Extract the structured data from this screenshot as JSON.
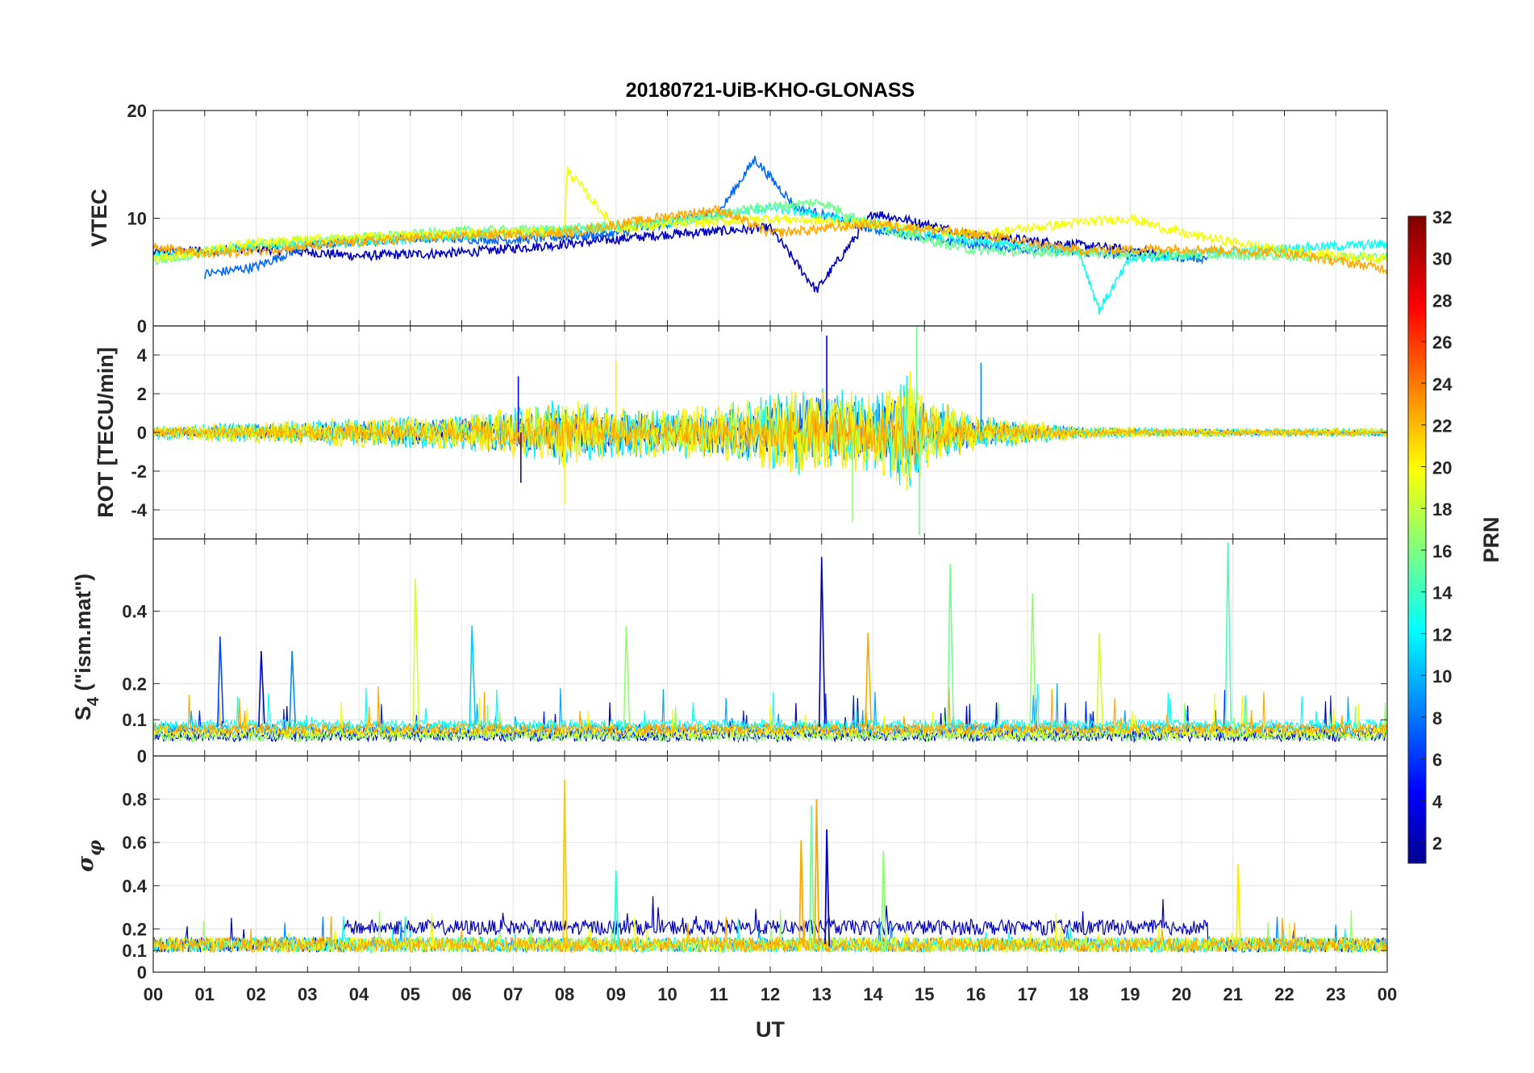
{
  "title": "20180721-UiB-KHO-GLONASS",
  "xlabel": "UT",
  "x_ticks": [
    "00",
    "01",
    "02",
    "03",
    "04",
    "05",
    "06",
    "07",
    "08",
    "09",
    "10",
    "11",
    "12",
    "13",
    "14",
    "15",
    "16",
    "17",
    "18",
    "19",
    "20",
    "21",
    "22",
    "23",
    "00"
  ],
  "colorbar": {
    "label": "PRN",
    "range": [
      1,
      32
    ],
    "ticks": [
      "2",
      "4",
      "6",
      "8",
      "10",
      "12",
      "14",
      "16",
      "18",
      "20",
      "22",
      "24",
      "26",
      "28",
      "30",
      "32"
    ],
    "colormap": "jet"
  },
  "chart_data": [
    {
      "type": "line",
      "panel": "VTEC",
      "ylabel": "VTEC",
      "ylim": [
        0,
        20
      ],
      "yticks": [
        "0",
        "10",
        "20"
      ],
      "xlim": [
        0,
        24
      ],
      "grid": true,
      "description_of_series": "Colored by PRN; typical VTEC 6-9 TECU, peaks near 15.5 at 11.8 UT",
      "series": [
        {
          "prn": 3,
          "x": [
            0,
            2,
            4,
            6,
            8,
            10,
            12,
            12.9,
            14,
            16,
            18,
            19.5
          ],
          "y": [
            6.8,
            7.2,
            6.5,
            6.8,
            7.6,
            8.5,
            9.1,
            3.3,
            10.5,
            8.4,
            7.5,
            6.8
          ]
        },
        {
          "prn": 8,
          "x": [
            1,
            2,
            3,
            5,
            7,
            9,
            11,
            11.7,
            12.5,
            14,
            16,
            18,
            20.5
          ],
          "y": [
            4.8,
            5.5,
            7.5,
            8.2,
            8.0,
            8.6,
            10.5,
            15.5,
            11.0,
            9.0,
            7.5,
            6.8,
            6.3
          ]
        },
        {
          "prn": 13,
          "x": [
            0,
            2,
            4,
            6,
            8,
            10,
            12,
            14,
            16,
            18,
            18.4,
            19,
            20,
            22,
            24
          ],
          "y": [
            6.5,
            7.4,
            7.8,
            8.4,
            8.8,
            9.5,
            11.0,
            9.5,
            7.8,
            7.0,
            1.5,
            6.2,
            6.6,
            7.2,
            7.6
          ]
        },
        {
          "prn": 16,
          "x": [
            0,
            2,
            4,
            6,
            8,
            10,
            11.8,
            13,
            14,
            15,
            16,
            18,
            20,
            22,
            24
          ],
          "y": [
            6.0,
            7.6,
            8.2,
            8.8,
            9.0,
            9.6,
            11.0,
            11.5,
            9.3,
            8.0,
            7.0,
            6.8,
            6.6,
            6.5,
            6.4
          ]
        },
        {
          "prn": 20,
          "x": [
            0,
            2,
            4,
            6,
            8,
            8.05,
            9,
            10,
            12,
            14,
            16,
            18,
            19,
            20,
            22,
            24
          ],
          "y": [
            6.2,
            7.8,
            8.2,
            8.6,
            8.8,
            14.5,
            9.0,
            9.4,
            10.0,
            9.5,
            8.5,
            9.6,
            10.0,
            8.6,
            7.0,
            6.2
          ]
        },
        {
          "prn": 23,
          "x": [
            0,
            1,
            2,
            4,
            6,
            8,
            10,
            10.5,
            11,
            12,
            13,
            14,
            16,
            18,
            20,
            22,
            24
          ],
          "y": [
            7.5,
            6.6,
            7.0,
            7.8,
            8.4,
            8.6,
            10.2,
            10.5,
            10.8,
            8.6,
            9.0,
            9.5,
            8.5,
            7.0,
            7.2,
            6.8,
            5.3
          ]
        }
      ]
    },
    {
      "type": "line",
      "panel": "ROT",
      "ylabel": "ROT [TECU/min]",
      "ylim": [
        -5.5,
        5.5
      ],
      "yticks": [
        "-4",
        "-2",
        "0",
        "2",
        "4"
      ],
      "xlim": [
        0,
        24
      ],
      "grid": true,
      "description_of_series": "Noisy around 0; amplitude increases between 07 and 16 UT with spikes to about ±5",
      "envelope": {
        "x": [
          0,
          2,
          4,
          6,
          7,
          8,
          9,
          10,
          11,
          12,
          13,
          14,
          14.8,
          15,
          16,
          17,
          18,
          20,
          22,
          24
        ],
        "amplitude": [
          0.3,
          0.5,
          0.7,
          0.8,
          1.2,
          1.6,
          1.2,
          1.2,
          1.3,
          1.8,
          2.2,
          1.8,
          3.0,
          1.8,
          0.8,
          0.6,
          0.3,
          0.2,
          0.2,
          0.2
        ]
      },
      "spikes": [
        {
          "prn": 5,
          "x": 7.1,
          "y": 2.9
        },
        {
          "prn": 5,
          "x": 7.15,
          "y": -2.6
        },
        {
          "prn": 20,
          "x": 8.0,
          "y": -3.7
        },
        {
          "prn": 21,
          "x": 9.0,
          "y": 3.7
        },
        {
          "prn": 3,
          "x": 13.1,
          "y": 5.0
        },
        {
          "prn": 17,
          "x": 13.6,
          "y": -4.6
        },
        {
          "prn": 16,
          "x": 14.85,
          "y": 5.5
        },
        {
          "prn": 16,
          "x": 14.9,
          "y": -5.3
        },
        {
          "prn": 9,
          "x": 16.1,
          "y": 3.6
        }
      ]
    },
    {
      "type": "line",
      "panel": "S4",
      "ylabel": "S4 (\"ism.mat\")",
      "ylim": [
        0,
        0.6
      ],
      "yticks": [
        "0",
        "0.1",
        "0.2",
        "0.4"
      ],
      "xlim": [
        0,
        24
      ],
      "grid": true,
      "description_of_series": "Baseline 0.03-0.1 with bursts; spikes at 05.1 (0.49), 13.0 (0.55), 15.5 (0.53), 17.1 (0.45), 20.9 (0.59)",
      "spikes": [
        {
          "prn": 7,
          "x": 1.3,
          "y": 0.33
        },
        {
          "prn": 4,
          "x": 2.1,
          "y": 0.29
        },
        {
          "prn": 9,
          "x": 2.7,
          "y": 0.29
        },
        {
          "prn": 19,
          "x": 5.1,
          "y": 0.49
        },
        {
          "prn": 11,
          "x": 6.2,
          "y": 0.36
        },
        {
          "prn": 17,
          "x": 9.2,
          "y": 0.36
        },
        {
          "prn": 3,
          "x": 13.0,
          "y": 0.55
        },
        {
          "prn": 23,
          "x": 13.9,
          "y": 0.34
        },
        {
          "prn": 16,
          "x": 15.5,
          "y": 0.53
        },
        {
          "prn": 17,
          "x": 17.1,
          "y": 0.45
        },
        {
          "prn": 19,
          "x": 18.4,
          "y": 0.34
        },
        {
          "prn": 15,
          "x": 20.9,
          "y": 0.59
        }
      ]
    },
    {
      "type": "line",
      "panel": "sigma_phi",
      "ylabel": "σφ",
      "ylim": [
        0,
        1
      ],
      "yticks": [
        "0",
        "0.1",
        "0.2",
        "0.4",
        "0.6",
        "0.8"
      ],
      "xlim": [
        0,
        24
      ],
      "grid": true,
      "description_of_series": "Baseline 0.1-0.15; PRN 3-4 elevated 0.2-0.3 in 04-20 UT; spikes at 08.0 (0.89), 12.9 (0.80), 13.1 (0.66), 21.1 (0.50)",
      "spikes": [
        {
          "prn": 22,
          "x": 8.0,
          "y": 0.89
        },
        {
          "prn": 23,
          "x": 12.6,
          "y": 0.61
        },
        {
          "prn": 16,
          "x": 12.8,
          "y": 0.77
        },
        {
          "prn": 23,
          "x": 12.9,
          "y": 0.8
        },
        {
          "prn": 3,
          "x": 13.1,
          "y": 0.66
        },
        {
          "prn": 17,
          "x": 14.2,
          "y": 0.56
        },
        {
          "prn": 21,
          "x": 21.1,
          "y": 0.5
        },
        {
          "prn": 14,
          "x": 9.0,
          "y": 0.47
        }
      ]
    }
  ]
}
